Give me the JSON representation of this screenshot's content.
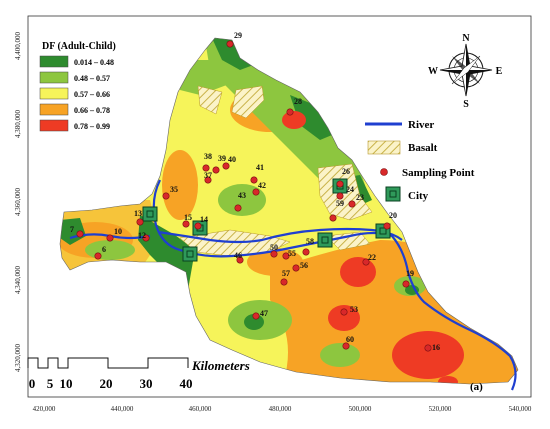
{
  "map": {
    "panel_label": "(a)",
    "x_ticks": [
      "420,000",
      "440,000",
      "460,000",
      "480,000",
      "500,000",
      "520,000",
      "540,000"
    ],
    "y_ticks": [
      "4,400,000",
      "4,380,000",
      "4,360,000",
      "4,340,000",
      "4,320,000"
    ],
    "north_labels": {
      "n": "N",
      "s": "S",
      "e": "E",
      "w": "W"
    }
  },
  "legend": {
    "title": "DF (Adult-Child)",
    "classes": [
      {
        "label": "0.014 – 0.48",
        "color": "#2e8b2e"
      },
      {
        "label": "0.48 – 0.57",
        "color": "#8dc63f"
      },
      {
        "label": "0.57 – 0.66",
        "color": "#f6f45a"
      },
      {
        "label": "0.66 – 0.78",
        "color": "#f7a325"
      },
      {
        "label": "0.78 – 0.99",
        "color": "#ee3b24"
      }
    ]
  },
  "key": {
    "river": "River",
    "basalt": "Basalt",
    "sampling": "Sampling Point",
    "city": "City",
    "river_color": "#1f3fd0"
  },
  "scalebar": {
    "unit": "Kilometers",
    "labels": [
      "0",
      "5",
      "10",
      "20",
      "30",
      "40"
    ]
  },
  "sampling_points": [
    {
      "id": "29"
    },
    {
      "id": "28"
    },
    {
      "id": "38"
    },
    {
      "id": "39"
    },
    {
      "id": "40"
    },
    {
      "id": "41"
    },
    {
      "id": "37"
    },
    {
      "id": "42"
    },
    {
      "id": "43"
    },
    {
      "id": "35"
    },
    {
      "id": "26"
    },
    {
      "id": "24"
    },
    {
      "id": "23"
    },
    {
      "id": "59"
    },
    {
      "id": "20"
    },
    {
      "id": "13"
    },
    {
      "id": "15"
    },
    {
      "id": "14"
    },
    {
      "id": "10"
    },
    {
      "id": "7"
    },
    {
      "id": "6"
    },
    {
      "id": "46"
    },
    {
      "id": "50"
    },
    {
      "id": "58"
    },
    {
      "id": "55"
    },
    {
      "id": "56"
    },
    {
      "id": "57"
    },
    {
      "id": "22"
    },
    {
      "id": "19"
    },
    {
      "id": "53"
    },
    {
      "id": "47"
    },
    {
      "id": "60"
    },
    {
      "id": "16"
    },
    {
      "id": "12"
    }
  ]
}
